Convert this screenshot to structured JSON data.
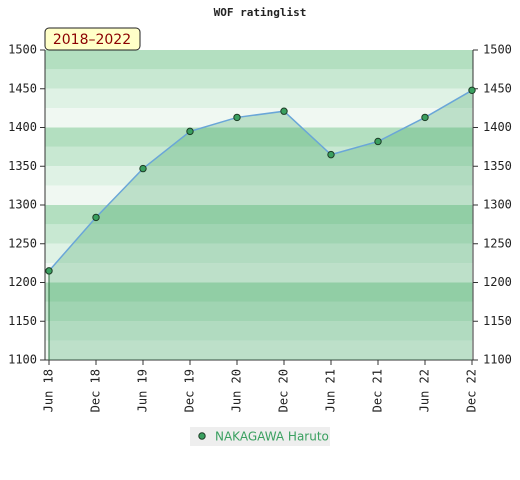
{
  "chart_data": {
    "type": "line",
    "title": "WOF ratinglist",
    "badge": "2018–2022",
    "categories": [
      "Jun 18",
      "Dec 18",
      "Jun 19",
      "Dec 19",
      "Jun 20",
      "Dec 20",
      "Jun 21",
      "Dec 21",
      "Jun 22",
      "Dec 22"
    ],
    "series": [
      {
        "name": "NAKAGAWA Haruto",
        "color": "#3aa060",
        "line_color": "#6aa6d8",
        "values": [
          1215,
          1284,
          1347,
          1395,
          1413,
          1421,
          1365,
          1382,
          1413,
          1448
        ]
      }
    ],
    "ylim": [
      1100,
      1500
    ],
    "yticks": [
      1100,
      1150,
      1200,
      1250,
      1300,
      1350,
      1400,
      1450,
      1500
    ],
    "y2lim": [
      1100,
      1500
    ],
    "y2ticks": [
      1100,
      1150,
      1200,
      1250,
      1300,
      1350,
      1400,
      1450,
      1500
    ],
    "area": true
  }
}
